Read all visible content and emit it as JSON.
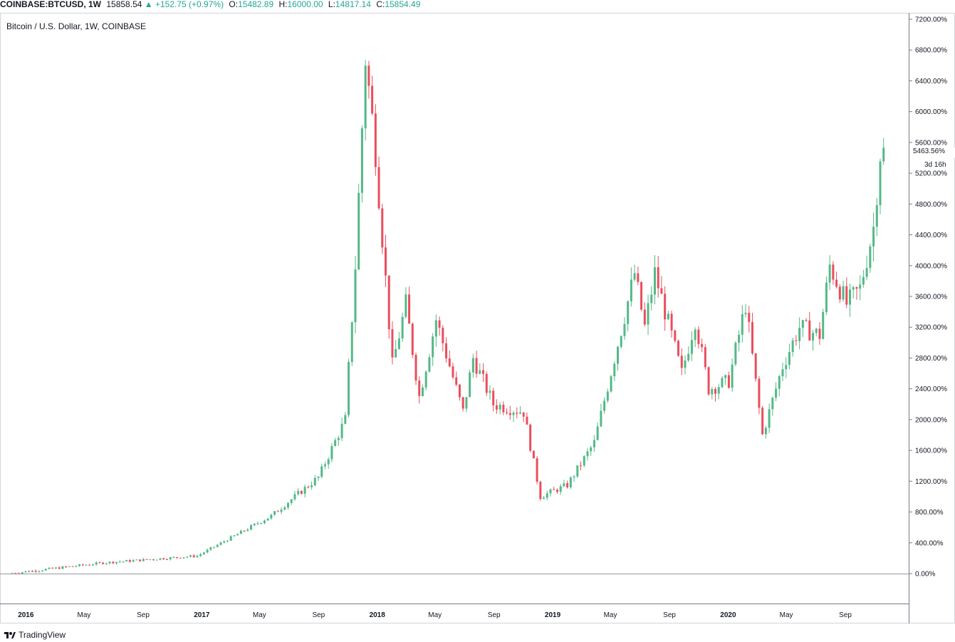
{
  "header": {
    "symbol": "COINBASE:BTCUSD, 1W",
    "price": "15858.54",
    "change": "+152.75 (+0.97%)",
    "o_label": "O:",
    "o_value": "15482.89",
    "h_label": "H:",
    "h_value": "16000.00",
    "l_label": "L:",
    "l_value": "14817.14",
    "c_label": "C:",
    "c_value": "15854.49"
  },
  "legend": "Bitcoin / U.S. Dollar, 1W, COINBASE",
  "last_value_label": "5463.56%",
  "countdown": "3d 16h",
  "footer": {
    "brand": "TradingView"
  },
  "colors": {
    "up": "#26a69a",
    "down": "#ef5350",
    "up_body": "#53b987",
    "down_body": "#eb4d5c"
  },
  "chart_data": {
    "type": "candlestick",
    "title": "Bitcoin / U.S. Dollar, 1W, COINBASE",
    "y_scale": "percent",
    "ylim": [
      -400,
      7200
    ],
    "y_ticks": [
      "7200.00%",
      "6800.00%",
      "6400.00%",
      "6000.00%",
      "5600.00%",
      "5200.00%",
      "4800.00%",
      "4400.00%",
      "4000.00%",
      "3600.00%",
      "3200.00%",
      "2800.00%",
      "2400.00%",
      "2000.00%",
      "1600.00%",
      "1200.00%",
      "800.00%",
      "400.00%",
      "0.00%"
    ],
    "x_ticks": [
      "2016",
      "May",
      "Sep",
      "2017",
      "May",
      "Sep",
      "2018",
      "May",
      "Sep",
      "2019",
      "May",
      "Sep",
      "2020",
      "May",
      "Sep"
    ],
    "x_range": [
      "2015-11-23",
      "2020-12-21"
    ],
    "anchor_points": [
      {
        "date": "2015-11-30",
        "pct": 0
      },
      {
        "date": "2016-06-13",
        "pct": 140
      },
      {
        "date": "2016-12-26",
        "pct": 230
      },
      {
        "date": "2017-05-29",
        "pct": 750
      },
      {
        "date": "2017-09-04",
        "pct": 1250
      },
      {
        "date": "2017-10-30",
        "pct": 2000
      },
      {
        "date": "2017-11-20",
        "pct": 4000
      },
      {
        "date": "2017-12-11",
        "pct": 6700
      },
      {
        "date": "2018-01-01",
        "pct": 5500
      },
      {
        "date": "2018-02-05",
        "pct": 2700
      },
      {
        "date": "2018-03-05",
        "pct": 3500
      },
      {
        "date": "2018-04-02",
        "pct": 2300
      },
      {
        "date": "2018-05-07",
        "pct": 3300
      },
      {
        "date": "2018-07-02",
        "pct": 2100
      },
      {
        "date": "2018-07-23",
        "pct": 2800
      },
      {
        "date": "2018-09-03",
        "pct": 2200
      },
      {
        "date": "2018-11-05",
        "pct": 2100
      },
      {
        "date": "2018-12-10",
        "pct": 1000
      },
      {
        "date": "2019-02-04",
        "pct": 1150
      },
      {
        "date": "2019-04-01",
        "pct": 1700
      },
      {
        "date": "2019-05-13",
        "pct": 2800
      },
      {
        "date": "2019-06-24",
        "pct": 3900
      },
      {
        "date": "2019-07-15",
        "pct": 3200
      },
      {
        "date": "2019-08-05",
        "pct": 3900
      },
      {
        "date": "2019-09-30",
        "pct": 2600
      },
      {
        "date": "2019-10-28",
        "pct": 3300
      },
      {
        "date": "2019-11-25",
        "pct": 2400
      },
      {
        "date": "2020-01-06",
        "pct": 2500
      },
      {
        "date": "2020-02-10",
        "pct": 3500
      },
      {
        "date": "2020-03-16",
        "pct": 1800
      },
      {
        "date": "2020-04-27",
        "pct": 2700
      },
      {
        "date": "2020-06-01",
        "pct": 3200
      },
      {
        "date": "2020-07-13",
        "pct": 3100
      },
      {
        "date": "2020-08-03",
        "pct": 4000
      },
      {
        "date": "2020-09-07",
        "pct": 3500
      },
      {
        "date": "2020-10-05",
        "pct": 3700
      },
      {
        "date": "2020-11-02",
        "pct": 4500
      },
      {
        "date": "2020-11-16",
        "pct": 5463.56
      }
    ]
  }
}
